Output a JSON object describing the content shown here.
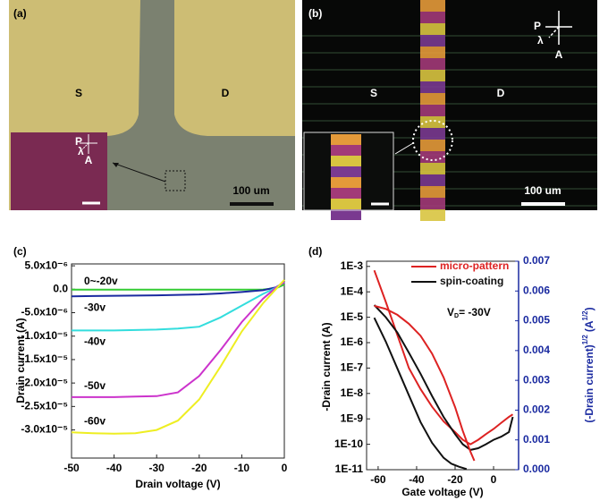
{
  "panels": [
    {
      "label": "(a)",
      "regions": [
        "S",
        "D"
      ],
      "polarizer": [
        "P",
        "λ",
        "A"
      ],
      "scale_bar": "100 um"
    },
    {
      "label": "(b)",
      "regions": [
        "S",
        "D"
      ],
      "polarizer": [
        "P",
        "λ",
        "A"
      ],
      "scale_bar": "100 um"
    }
  ],
  "chart_data": [
    {
      "type": "line",
      "label": "(c)",
      "x_label": "Drain voltage (V)",
      "y_label": "Drain current (A)",
      "x": [
        -50,
        -45,
        -40,
        -35,
        -30,
        -25,
        -20,
        -15,
        -10,
        -5,
        -2,
        0
      ],
      "series": [
        {
          "name": "0~-20v",
          "color": "#33cc33",
          "values": [
            -1e-07,
            -1e-07,
            -1e-07,
            -1e-07,
            -1e-07,
            -1e-07,
            -1e-07,
            -1e-07,
            -1e-07,
            -5e-08,
            2e-07,
            1e-06
          ]
        },
        {
          "name": "-30v",
          "color": "#1a2aa0",
          "values": [
            -1.5e-06,
            -1.45e-06,
            -1.4e-06,
            -1.35e-06,
            -1.3e-06,
            -1.2e-06,
            -1.1e-06,
            -9e-07,
            -6e-07,
            -2e-07,
            4e-07,
            1.5e-06
          ]
        },
        {
          "name": "-40v",
          "color": "#33dddd",
          "values": [
            -8.8e-06,
            -8.8e-06,
            -8.8e-06,
            -8.7e-06,
            -8.6e-06,
            -8.4e-06,
            -8e-06,
            -6e-06,
            -3.5e-06,
            -1e-06,
            3e-07,
            1.5e-06
          ]
        },
        {
          "name": "-50v",
          "color": "#cc33cc",
          "values": [
            -2.3e-05,
            -2.3e-05,
            -2.3e-05,
            -2.29e-05,
            -2.28e-05,
            -2.2e-05,
            -1.85e-05,
            -1.3e-05,
            -7e-06,
            -2e-06,
            3e-07,
            1.5e-06
          ]
        },
        {
          "name": "-60v",
          "color": "#eeee22",
          "values": [
            -3.05e-05,
            -3.07e-05,
            -3.08e-05,
            -3.07e-05,
            -3e-05,
            -2.8e-05,
            -2.35e-05,
            -1.65e-05,
            -9e-06,
            -3e-06,
            0,
            2e-06
          ]
        }
      ],
      "xlim": [
        -50,
        0
      ],
      "xticks": [
        -50,
        -40,
        -30,
        -20,
        -10,
        0
      ],
      "ylim": [
        -3.6e-05,
        5.4e-06
      ],
      "yticks": [
        {
          "value": 5e-06,
          "label": "5.0x10⁻⁶"
        },
        {
          "value": 0,
          "label": "0.0"
        },
        {
          "value": -5e-06,
          "label": "-5.0x10⁻⁶"
        },
        {
          "value": -1e-05,
          "label": "-1.0x10⁻⁵"
        },
        {
          "value": -1.5e-05,
          "label": "-1.5x10⁻⁵"
        },
        {
          "value": -2e-05,
          "label": "-2.0x10⁻⁵"
        },
        {
          "value": -2.5e-05,
          "label": "-2.5x10⁻⁵"
        },
        {
          "value": -3e-05,
          "label": "-3.0x10⁻⁵"
        }
      ]
    },
    {
      "type": "line",
      "label": "(d)",
      "x_label": "Gate voltage (V)",
      "y_label": "-Drain current (A)",
      "y2_label": [
        "(-Drain current)",
        "1/2",
        "(A",
        "1/2",
        ")"
      ],
      "annotation": [
        "V",
        "D",
        "= -30V"
      ],
      "yscale": "log",
      "legend": "upper right",
      "series": [
        {
          "name": "micro-pattern",
          "color": "#dd2222",
          "x": [
            -62,
            -56,
            -50,
            -44,
            -38,
            -32,
            -26,
            -20,
            -16,
            -12,
            -8,
            -4,
            0,
            4,
            8,
            10
          ],
          "values": [
            0.0007,
            4e-05,
            2e-06,
            1e-07,
            1.5e-08,
            3e-09,
            8e-10,
            3e-10,
            1.5e-10,
            1e-10,
            1.5e-10,
            2.5e-10,
            4e-10,
            7e-10,
            1.2e-09,
            1.5e-09
          ]
        },
        {
          "name": "spin-coating",
          "color": "#111111",
          "x": [
            -62,
            -56,
            -50,
            -44,
            -38,
            -32,
            -26,
            -20,
            -16,
            -12,
            -8,
            -4,
            0,
            4,
            8,
            10
          ],
          "values": [
            3e-05,
            1e-05,
            2.5e-06,
            4e-07,
            6e-08,
            8e-09,
            1.2e-09,
            2.5e-10,
            1e-10,
            6e-11,
            7e-11,
            1e-10,
            1.5e-10,
            2e-10,
            3e-10,
            1.2e-09
          ]
        },
        {
          "color": "#dd2222",
          "axis": "y2",
          "x": [
            -62,
            -56,
            -50,
            -44,
            -38,
            -32,
            -26,
            -20,
            -16,
            -12,
            -10
          ],
          "values": [
            0.0055,
            0.0054,
            0.0052,
            0.0049,
            0.0045,
            0.0039,
            0.0031,
            0.0021,
            0.0013,
            0.0006,
            0.0003
          ]
        },
        {
          "color": "#111111",
          "axis": "y2",
          "x": [
            -62,
            -56,
            -50,
            -44,
            -38,
            -32,
            -26,
            -22,
            -18,
            -14
          ],
          "values": [
            0.0051,
            0.0043,
            0.0034,
            0.0025,
            0.0016,
            0.0009,
            0.0004,
            0.0002,
            0.0001,
            2e-05
          ]
        }
      ],
      "xlim": [
        -66,
        13
      ],
      "xticks": [
        -60,
        -40,
        -20,
        0
      ],
      "ylim": [
        1e-11,
        0.0016
      ],
      "yticks": [
        {
          "value": 1e-11,
          "label": "1E-11"
        },
        {
          "value": 1e-10,
          "label": "1E-10"
        },
        {
          "value": 1e-09,
          "label": "1E-9"
        },
        {
          "value": 1e-08,
          "label": "1E-8"
        },
        {
          "value": 1e-07,
          "label": "1E-7"
        },
        {
          "value": 1e-06,
          "label": "1E-6"
        },
        {
          "value": 1e-05,
          "label": "1E-5"
        },
        {
          "value": 0.0001,
          "label": "1E-4"
        },
        {
          "value": 0.001,
          "label": "1E-3"
        }
      ],
      "y2lim": [
        0,
        0.007
      ],
      "y2ticks": [
        {
          "value": 0,
          "label": "0.000"
        },
        {
          "value": 0.001,
          "label": "0.001"
        },
        {
          "value": 0.002,
          "label": "0.002"
        },
        {
          "value": 0.003,
          "label": "0.003"
        },
        {
          "value": 0.004,
          "label": "0.004"
        },
        {
          "value": 0.005,
          "label": "0.005"
        },
        {
          "value": 0.006,
          "label": "0.006"
        },
        {
          "value": 0.007,
          "label": "0.007"
        }
      ]
    }
  ]
}
